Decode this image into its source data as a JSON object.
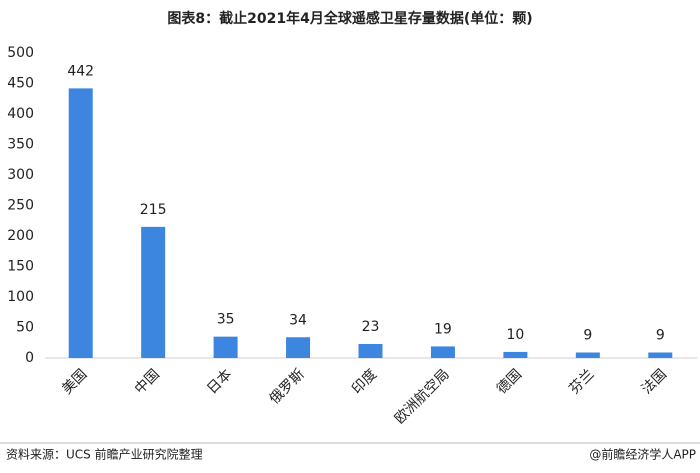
{
  "chart_data": {
    "type": "bar",
    "title": "图表8：截止2021年4月全球遥感卫星存量数据(单位：颗)",
    "categories": [
      "美国",
      "中国",
      "日本",
      "俄罗斯",
      "印度",
      "欧洲航空局",
      "德国",
      "芬兰",
      "法国"
    ],
    "values": [
      442,
      215,
      35,
      34,
      23,
      19,
      10,
      9,
      9
    ],
    "color": "#3d86e0",
    "ylim": [
      0,
      500
    ],
    "yticks": [
      0,
      50,
      100,
      150,
      200,
      250,
      300,
      350,
      400,
      450,
      500
    ],
    "grid": false,
    "source": "资料来源：UCS 前瞻产业研究院整理",
    "credit": "@前瞻经济学人APP"
  }
}
